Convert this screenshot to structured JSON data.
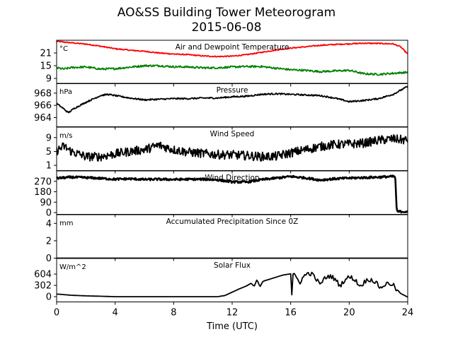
{
  "figure": {
    "title_line1": "AO&SS Building Tower Meteorogram",
    "title_line2": "2015-06-08",
    "xlabel": "Time (UTC)"
  },
  "chart_data": {
    "type": "line",
    "x_axis": {
      "label": "Time (UTC)",
      "range": [
        0,
        24
      ],
      "ticks": [
        0,
        4,
        8,
        12,
        16,
        20,
        24
      ]
    },
    "panels": [
      {
        "title": "Air and Dewpoint Temperature",
        "unit": "°C",
        "ylim": [
          6.5,
          27
        ],
        "yticks": [
          9,
          15,
          21
        ],
        "series": [
          {
            "key": "air",
            "color": "#ff0000",
            "noise": 0.25,
            "points": [
              [
                0,
                26.5
              ],
              [
                1,
                25.8
              ],
              [
                2,
                25.2
              ],
              [
                3,
                24.2
              ],
              [
                4,
                23.0
              ],
              [
                5,
                22.3
              ],
              [
                6,
                21.8
              ],
              [
                7,
                21.0
              ],
              [
                8,
                20.5
              ],
              [
                9,
                20.2
              ],
              [
                10,
                19.6
              ],
              [
                11,
                19.3
              ],
              [
                12,
                19.5
              ],
              [
                13,
                20.2
              ],
              [
                14,
                21.3
              ],
              [
                15,
                22.4
              ],
              [
                16,
                23.3
              ],
              [
                17,
                23.9
              ],
              [
                18,
                24.6
              ],
              [
                19,
                25.0
              ],
              [
                20,
                25.3
              ],
              [
                21,
                25.6
              ],
              [
                22,
                25.5
              ],
              [
                23,
                25.3
              ],
              [
                23.5,
                24.0
              ],
              [
                24,
                20.5
              ]
            ]
          },
          {
            "key": "dew",
            "color": "#008000",
            "noise": 0.45,
            "points": [
              [
                0,
                14.0
              ],
              [
                0.5,
                13.4
              ],
              [
                1,
                14.1
              ],
              [
                2,
                14.4
              ],
              [
                3,
                13.4
              ],
              [
                4,
                13.6
              ],
              [
                5,
                14.3
              ],
              [
                6,
                15.0
              ],
              [
                7,
                15.0
              ],
              [
                8,
                14.5
              ],
              [
                9,
                14.4
              ],
              [
                10,
                14.0
              ],
              [
                11,
                14.0
              ],
              [
                12,
                14.4
              ],
              [
                13,
                14.6
              ],
              [
                14,
                14.6
              ],
              [
                15,
                13.8
              ],
              [
                16,
                13.1
              ],
              [
                17,
                12.8
              ],
              [
                18,
                12.2
              ],
              [
                19,
                12.5
              ],
              [
                20,
                12.8
              ],
              [
                21,
                11.2
              ],
              [
                22,
                10.9
              ],
              [
                23,
                11.4
              ],
              [
                24,
                11.9
              ]
            ]
          }
        ]
      },
      {
        "title": "Pressure",
        "unit": "hPa",
        "ylim": [
          962.5,
          969.6
        ],
        "yticks": [
          964,
          966,
          968
        ],
        "series": [
          {
            "key": "pressure",
            "color": "#000000",
            "noise": 0.12,
            "points": [
              [
                0,
                966.3
              ],
              [
                0.4,
                965.6
              ],
              [
                0.8,
                964.8
              ],
              [
                1.2,
                965.5
              ],
              [
                2,
                966.5
              ],
              [
                3,
                967.6
              ],
              [
                3.5,
                967.8
              ],
              [
                4,
                967.6
              ],
              [
                5,
                967.2
              ],
              [
                6,
                966.9
              ],
              [
                7,
                967.0
              ],
              [
                8,
                967.1
              ],
              [
                9,
                967.1
              ],
              [
                10,
                967.2
              ],
              [
                11,
                967.2
              ],
              [
                12,
                967.4
              ],
              [
                13,
                967.5
              ],
              [
                14,
                967.8
              ],
              [
                15,
                967.9
              ],
              [
                16,
                967.8
              ],
              [
                17,
                967.7
              ],
              [
                18,
                967.6
              ],
              [
                19,
                967.2
              ],
              [
                20,
                966.6
              ],
              [
                21,
                966.8
              ],
              [
                22,
                967.1
              ],
              [
                23,
                967.8
              ],
              [
                24,
                969.1
              ]
            ]
          }
        ]
      },
      {
        "title": "Wind Speed",
        "unit": "m/s",
        "ylim": [
          -0.5,
          12
        ],
        "yticks": [
          1,
          5,
          9
        ],
        "series": [
          {
            "key": "wind_speed",
            "color": "#000000",
            "noise": 1.3,
            "points": [
              [
                0,
                5.2
              ],
              [
                0.5,
                6.5
              ],
              [
                1,
                5.0
              ],
              [
                2,
                3.5
              ],
              [
                3,
                3.5
              ],
              [
                4,
                4.3
              ],
              [
                5,
                5.0
              ],
              [
                6,
                5.5
              ],
              [
                7,
                6.8
              ],
              [
                8,
                5.5
              ],
              [
                9,
                4.8
              ],
              [
                10,
                4.4
              ],
              [
                11,
                4.1
              ],
              [
                12,
                4.0
              ],
              [
                13,
                3.8
              ],
              [
                14,
                3.5
              ],
              [
                15,
                3.6
              ],
              [
                16,
                4.6
              ],
              [
                17,
                5.5
              ],
              [
                18,
                6.4
              ],
              [
                19,
                7.0
              ],
              [
                20,
                7.1
              ],
              [
                21,
                7.4
              ],
              [
                22,
                8.2
              ],
              [
                23,
                8.6
              ],
              [
                24,
                8.2
              ]
            ]
          }
        ]
      },
      {
        "title": "Wind Direction",
        "unit": "°",
        "ylim": [
          -15,
          360
        ],
        "yticks": [
          0,
          90,
          180,
          270
        ],
        "series": [
          {
            "key": "wind_dir",
            "color": "#000000",
            "noise": 9,
            "marker": true,
            "points": [
              [
                0,
                296
              ],
              [
                1,
                306
              ],
              [
                2,
                302
              ],
              [
                3,
                296
              ],
              [
                4,
                288
              ],
              [
                5,
                292
              ],
              [
                6,
                286
              ],
              [
                7,
                288
              ],
              [
                8,
                286
              ],
              [
                9,
                288
              ],
              [
                10,
                288
              ],
              [
                11,
                283
              ],
              [
                12,
                265
              ],
              [
                13,
                264
              ],
              [
                14,
                284
              ],
              [
                15,
                298
              ],
              [
                16,
                312
              ],
              [
                17,
                300
              ],
              [
                18,
                281
              ],
              [
                19,
                292
              ],
              [
                20,
                298
              ],
              [
                21,
                302
              ],
              [
                22,
                306
              ],
              [
                23,
                312
              ],
              [
                23.15,
                310
              ],
              [
                23.25,
                10
              ],
              [
                24,
                8
              ]
            ]
          }
        ]
      },
      {
        "title": "Accumulated Precipitation Since 0Z",
        "unit": "mm",
        "ylim": [
          0,
          5.0
        ],
        "yticks": [
          0,
          2,
          4
        ],
        "series": [
          {
            "key": "precip",
            "color": "#000000",
            "noise": 0,
            "points": [
              [
                0,
                0
              ],
              [
                24,
                0
              ]
            ]
          }
        ]
      },
      {
        "title": "Solar Flux",
        "unit": "W/m^2",
        "ylim": [
          -140,
          1020
        ],
        "yticks": [
          0,
          302,
          604
        ],
        "series": [
          {
            "key": "solar",
            "color": "#000000",
            "noise": 0,
            "points": [
              [
                0,
                70
              ],
              [
                0.5,
                55
              ],
              [
                1,
                38
              ],
              [
                2,
                22
              ],
              [
                3,
                12
              ],
              [
                4,
                0
              ],
              [
                5,
                0
              ],
              [
                6,
                0
              ],
              [
                7,
                0
              ],
              [
                8,
                0
              ],
              [
                9,
                0
              ],
              [
                10,
                0
              ],
              [
                11,
                0
              ],
              [
                11.5,
                30
              ],
              [
                12,
                120
              ],
              [
                12.5,
                210
              ],
              [
                13,
                290
              ],
              [
                13.3,
                360
              ],
              [
                13.5,
                270
              ],
              [
                13.7,
                460
              ],
              [
                13.9,
                260
              ],
              [
                14.1,
                410
              ],
              [
                15,
                520
              ],
              [
                15.5,
                580
              ],
              [
                16,
                610
              ],
              [
                16.08,
                50
              ],
              [
                16.15,
                600
              ],
              [
                16.5,
                680
              ],
              [
                17,
                640
              ],
              [
                18,
                580
              ],
              [
                19,
                530
              ],
              [
                20,
                520
              ],
              [
                21,
                480
              ],
              [
                22,
                430
              ],
              [
                23,
                330
              ],
              [
                23.5,
                90
              ],
              [
                24,
                -10
              ]
            ]
          }
        ]
      }
    ]
  }
}
